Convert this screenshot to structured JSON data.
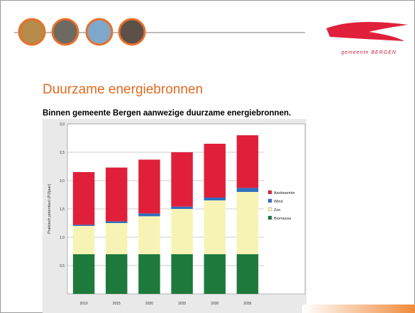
{
  "header": {
    "logo_text": "gemeente BERGEN"
  },
  "title": "Duurzame energiebronnen",
  "subtitle": "Binnen gemeente Bergen aanwezige duurzame energiebronnen.",
  "chart_data": {
    "type": "stacked_bar",
    "ylabel": "Praktisch potentieel (PJ/jaar)",
    "categories": [
      "2010",
      "2015",
      "2020",
      "2025",
      "2030",
      "2035"
    ],
    "series": [
      {
        "name": "Biomassa",
        "color": "#1e7a3c",
        "values": [
          0.7,
          0.7,
          0.7,
          0.7,
          0.7,
          0.7
        ]
      },
      {
        "name": "Zon",
        "color": "#f7f3b4",
        "values": [
          0.5,
          0.55,
          0.67,
          0.8,
          0.95,
          1.1
        ]
      },
      {
        "name": "Wind",
        "color": "#2f6fc0",
        "values": [
          0.02,
          0.03,
          0.05,
          0.04,
          0.05,
          0.07
        ]
      },
      {
        "name": "Aardwarmte",
        "color": "#e0203a",
        "values": [
          0.93,
          0.95,
          0.95,
          0.96,
          0.95,
          0.93
        ]
      }
    ],
    "ylim": [
      0,
      3
    ],
    "yticks": [
      {
        "value": 0.5,
        "label": "0,5"
      },
      {
        "value": 1,
        "label": "1,0"
      },
      {
        "value": 1.5,
        "label": "1,5"
      },
      {
        "value": 2,
        "label": "2,0"
      },
      {
        "value": 2.5,
        "label": "2,5"
      },
      {
        "value": 3,
        "label": "3,0"
      }
    ],
    "grid": true,
    "legend_order": [
      3,
      2,
      1,
      0
    ]
  }
}
